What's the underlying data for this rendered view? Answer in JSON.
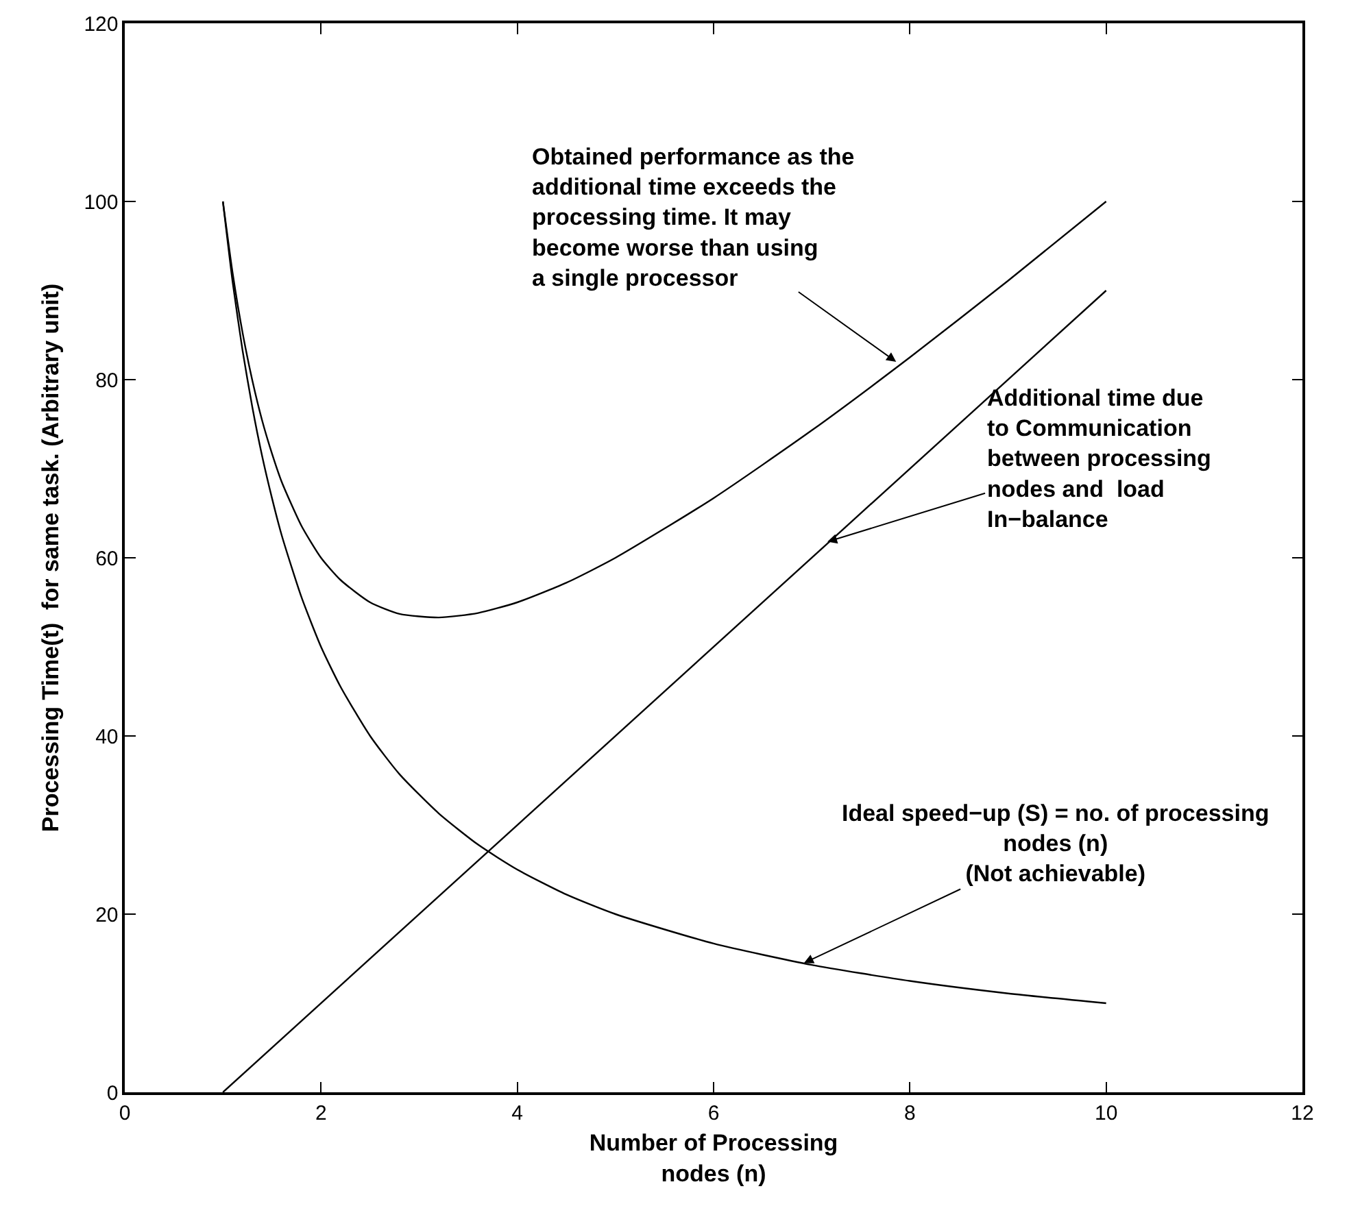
{
  "chart_data": {
    "type": "line",
    "xlabel": "Number of Processing\nnodes (n)",
    "ylabel": "Processing Time(t)  for same task. (Arbitrary unit)",
    "xlim": [
      0,
      12
    ],
    "xticks": [
      0,
      2,
      4,
      6,
      8,
      10,
      12
    ],
    "ylim": [
      0,
      120
    ],
    "yticks": [
      0,
      20,
      40,
      60,
      80,
      100,
      120
    ],
    "grid": false,
    "marker": "none",
    "line_style": "solid",
    "series": [
      {
        "color": "#000000",
        "x": [
          1,
          1.1,
          1.2,
          1.3,
          1.4,
          1.5,
          1.6,
          1.8,
          2,
          2.2,
          2.5,
          2.8,
          3.2,
          3.6,
          4,
          4.5,
          5,
          6,
          7,
          8,
          9,
          10
        ],
        "values": [
          100,
          90.9,
          83.3,
          76.9,
          71.4,
          66.7,
          62.5,
          55.6,
          50,
          45.5,
          40,
          35.7,
          31.3,
          27.8,
          25,
          22.2,
          20,
          16.7,
          14.3,
          12.5,
          11.1,
          10
        ]
      },
      {
        "color": "#000000",
        "x": [
          1,
          1.1,
          1.2,
          1.3,
          1.4,
          1.5,
          1.6,
          1.8,
          2,
          2.2,
          2.5,
          2.8,
          3.2,
          3.6,
          4,
          4.5,
          5,
          6,
          7,
          8,
          9,
          10
        ],
        "values": [
          100,
          91.9,
          85.3,
          79.9,
          75.4,
          71.7,
          68.5,
          63.6,
          60,
          57.5,
          55,
          53.7,
          53.3,
          53.8,
          55,
          57.2,
          60,
          66.7,
          74.3,
          82.5,
          91.1,
          100
        ]
      },
      {
        "color": "#000000",
        "x": [
          1,
          10
        ],
        "values": [
          0,
          90
        ]
      }
    ],
    "annotations": [
      {
        "text": "Obtained performance as the\nadditional time exceeds the\nprocessing time. It may\nbecome worse than using\na single processor",
        "x": 7.86,
        "y": 82
      },
      {
        "text": "Additional time due\nto Communication\nbetween processing\nnodes and  load\nIn−balance",
        "x": 7.16,
        "y": 61.8
      },
      {
        "text": "Ideal speed−up (S) = no. of processing\nnodes (n)\n(Not achievable)",
        "x": 6.92,
        "y": 14.5
      }
    ]
  }
}
